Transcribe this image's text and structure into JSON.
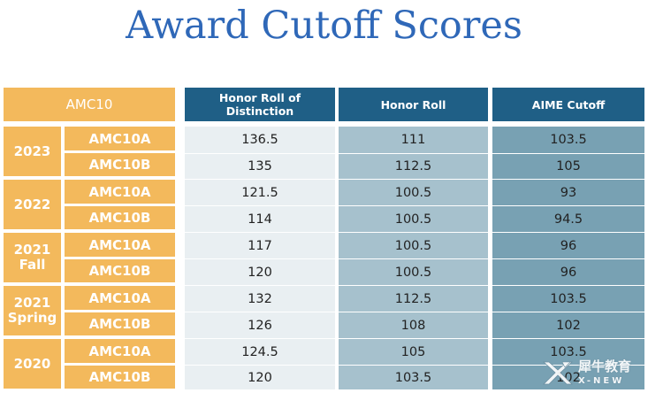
{
  "title": "Award Cutoff Scores",
  "table": {
    "columns": [
      "AMC10",
      "Honor Roll of Distinction",
      "Honor Roll",
      "AIME Cutoff"
    ],
    "groups": [
      {
        "year": "2023",
        "rows": [
          {
            "exam": "AMC10A",
            "hrd": "136.5",
            "hr": "111",
            "aime": "103.5"
          },
          {
            "exam": "AMC10B",
            "hrd": "135",
            "hr": "112.5",
            "aime": "105"
          }
        ]
      },
      {
        "year": "2022",
        "rows": [
          {
            "exam": "AMC10A",
            "hrd": "121.5",
            "hr": "100.5",
            "aime": "93"
          },
          {
            "exam": "AMC10B",
            "hrd": "114",
            "hr": "100.5",
            "aime": "94.5"
          }
        ]
      },
      {
        "year": "2021\nFall",
        "rows": [
          {
            "exam": "AMC10A",
            "hrd": "117",
            "hr": "100.5",
            "aime": "96"
          },
          {
            "exam": "AMC10B",
            "hrd": "120",
            "hr": "100.5",
            "aime": "96"
          }
        ]
      },
      {
        "year": "2021\nSpring",
        "rows": [
          {
            "exam": "AMC10A",
            "hrd": "132",
            "hr": "112.5",
            "aime": "103.5"
          },
          {
            "exam": "AMC10B",
            "hrd": "126",
            "hr": "108",
            "aime": "102"
          }
        ]
      },
      {
        "year": "2020",
        "rows": [
          {
            "exam": "AMC10A",
            "hrd": "124.5",
            "hr": "105",
            "aime": "103.5"
          },
          {
            "exam": "AMC10B",
            "hrd": "120",
            "hr": "103.5",
            "aime": "102"
          }
        ]
      }
    ]
  },
  "watermark": {
    "cn": "犀牛教育",
    "en": "X-NEW"
  },
  "colors": {
    "title": "#2f68b8",
    "orange": "#f3b95c",
    "header_blue": "#1f5f86",
    "col1": "#e9eff2",
    "col2": "#a6c1cd",
    "col3": "#78a1b3"
  }
}
